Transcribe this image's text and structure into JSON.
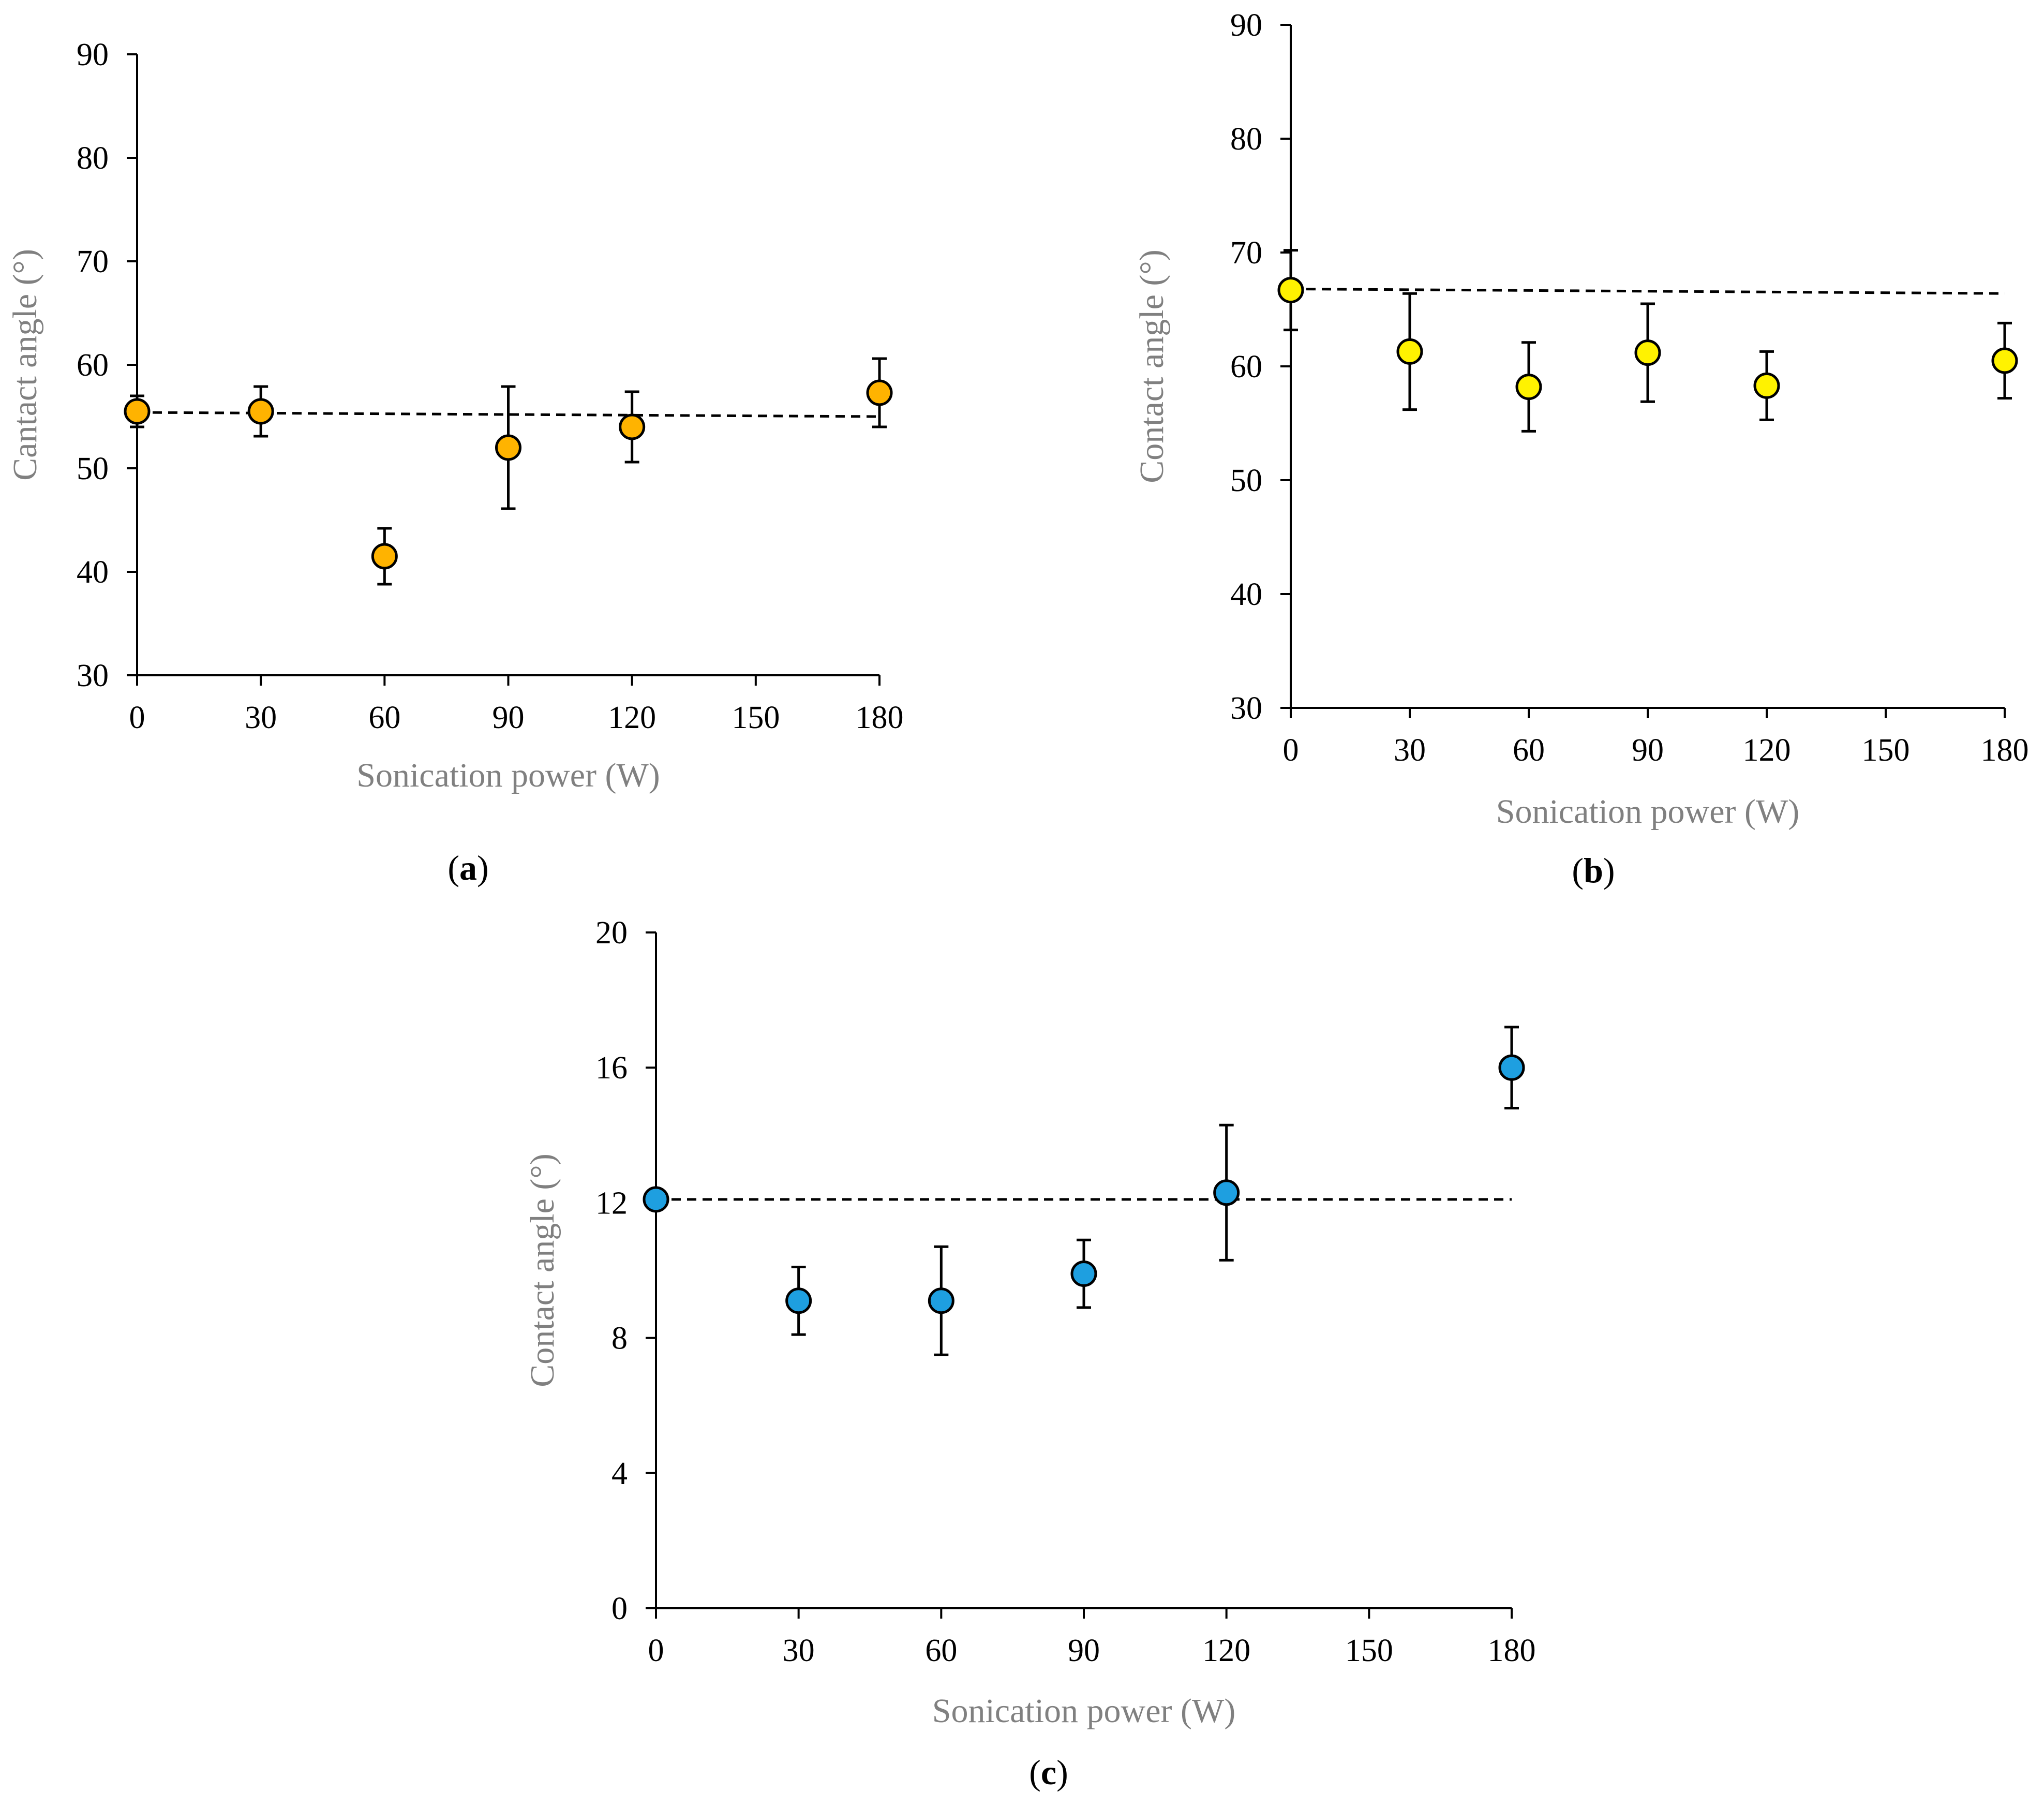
{
  "chart_data": [
    {
      "type": "scatter",
      "panel_label": "a",
      "xlabel": "Sonication power (W)",
      "ylabel": "Cantact angle (°)",
      "xlim": [
        0,
        180
      ],
      "ylim": [
        30,
        90
      ],
      "xticks": [
        0,
        30,
        60,
        90,
        120,
        150,
        180
      ],
      "yticks": [
        30,
        40,
        50,
        60,
        70,
        80,
        90
      ],
      "grid": false,
      "marker_color": "#FFB300",
      "points": [
        {
          "x": 0,
          "y": 55.5,
          "err": 1.5
        },
        {
          "x": 30,
          "y": 55.5,
          "err": 2.4
        },
        {
          "x": 60,
          "y": 41.5,
          "err": 2.7
        },
        {
          "x": 90,
          "y": 52.0,
          "err": 5.9
        },
        {
          "x": 120,
          "y": 54.0,
          "err": 3.4
        },
        {
          "x": 180,
          "y": 57.3,
          "err": 3.3
        }
      ],
      "trend_line": {
        "x": [
          0,
          180
        ],
        "y": [
          55.4,
          55.0
        ]
      }
    },
    {
      "type": "scatter",
      "panel_label": "b",
      "xlabel": "Sonication power (W)",
      "ylabel": "Contact angle (°)",
      "xlim": [
        0,
        180
      ],
      "ylim": [
        30,
        90
      ],
      "xticks": [
        0,
        30,
        60,
        90,
        120,
        150,
        180
      ],
      "yticks": [
        30,
        40,
        50,
        60,
        70,
        80,
        90
      ],
      "grid": false,
      "marker_color": "#FFF200",
      "points": [
        {
          "x": 0,
          "y": 66.7,
          "err": 3.5
        },
        {
          "x": 30,
          "y": 61.3,
          "err": 5.1
        },
        {
          "x": 60,
          "y": 58.2,
          "err": 3.9
        },
        {
          "x": 90,
          "y": 61.2,
          "err": 4.3
        },
        {
          "x": 120,
          "y": 58.3,
          "err": 3.0
        },
        {
          "x": 180,
          "y": 60.5,
          "err": 3.3
        }
      ],
      "trend_line": {
        "x": [
          0,
          180
        ],
        "y": [
          66.8,
          66.4
        ]
      }
    },
    {
      "type": "scatter",
      "panel_label": "c",
      "xlabel": "Sonication power (W)",
      "ylabel": "Contact angle (°)",
      "xlim": [
        0,
        180
      ],
      "ylim": [
        0,
        20
      ],
      "xticks": [
        0,
        30,
        60,
        90,
        120,
        150,
        180
      ],
      "yticks": [
        0,
        4,
        8,
        12,
        16,
        20
      ],
      "grid": false,
      "marker_color": "#1E9FE0",
      "points": [
        {
          "x": 0,
          "y": 12.1,
          "err": 0.0
        },
        {
          "x": 30,
          "y": 9.1,
          "err": 1.0
        },
        {
          "x": 60,
          "y": 9.1,
          "err": 1.6
        },
        {
          "x": 90,
          "y": 9.9,
          "err": 1.0
        },
        {
          "x": 120,
          "y": 12.3,
          "err": 2.0
        },
        {
          "x": 180,
          "y": 16.0,
          "err": 1.2
        }
      ],
      "trend_line": {
        "x": [
          0,
          180
        ],
        "y": [
          12.1,
          12.1
        ]
      }
    }
  ]
}
